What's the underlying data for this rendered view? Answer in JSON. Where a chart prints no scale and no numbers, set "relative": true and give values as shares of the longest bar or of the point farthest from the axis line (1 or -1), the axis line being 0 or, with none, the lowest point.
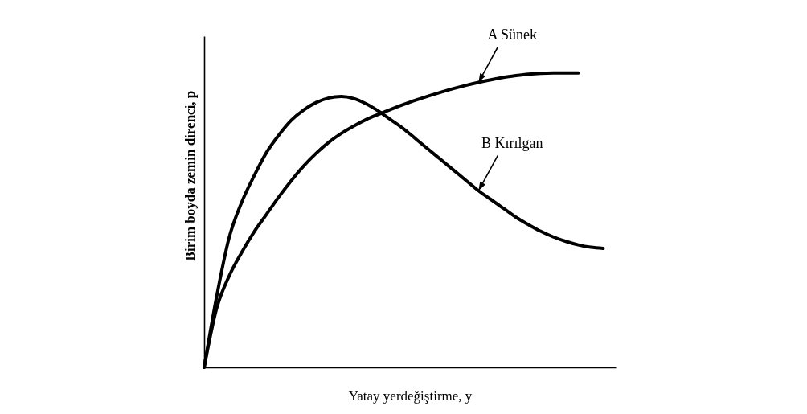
{
  "chart_data": {
    "type": "line",
    "relative": true,
    "xlabel": "Yatay yerdeğiştirme, y",
    "ylabel": "Birim boyda zemin direnci, p",
    "categories": [
      null,
      null,
      null,
      null,
      null,
      null,
      null,
      null,
      null,
      null,
      null,
      null,
      null,
      null,
      null,
      null,
      null,
      null,
      null,
      null,
      null,
      null,
      null,
      null,
      null,
      null,
      null,
      null,
      null,
      null,
      null,
      null,
      null
    ],
    "series": [
      {
        "name": "A Sünek",
        "color": "#000000",
        "values": [
          0,
          0.2,
          0.31,
          0.39,
          0.46,
          0.52,
          0.58,
          0.635,
          0.685,
          0.728,
          0.765,
          0.795,
          0.82,
          0.842,
          0.86,
          0.877,
          0.893,
          0.908,
          0.922,
          0.935,
          0.947,
          0.958,
          0.968,
          0.977,
          0.985,
          0.991,
          0.996,
          0.999,
          1.0,
          1.0,
          1.0,
          null,
          null
        ]
      },
      {
        "name": "B Kırılgan",
        "color": "#000000",
        "values": [
          0,
          0.24,
          0.44,
          0.56,
          0.65,
          0.73,
          0.79,
          0.84,
          0.875,
          0.9,
          0.915,
          0.92,
          0.913,
          0.895,
          0.87,
          0.84,
          0.81,
          0.775,
          0.74,
          0.705,
          0.67,
          0.635,
          0.6,
          0.57,
          0.54,
          0.51,
          0.485,
          0.462,
          0.443,
          0.428,
          0.416,
          0.408,
          0.404
        ]
      }
    ],
    "line_style": "solid"
  }
}
